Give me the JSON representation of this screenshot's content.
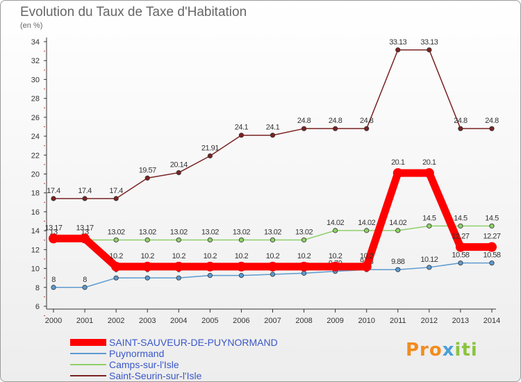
{
  "title": "Evolution du Taux de Taxe d'Habitation",
  "subtitle": "(en %)",
  "logo_text": "Proxiti",
  "chart_data": {
    "type": "line",
    "title": "Evolution du Taux de Taxe d'Habitation",
    "ylabel": "(en %)",
    "xlabel": "",
    "x": [
      "2000",
      "2001",
      "2002",
      "2003",
      "2004",
      "2005",
      "2006",
      "2007",
      "2008",
      "2009",
      "2010",
      "2011",
      "2012",
      "2013",
      "2014"
    ],
    "ylim": [
      6,
      34
    ],
    "yticks": [
      6,
      8,
      10,
      12,
      14,
      16,
      18,
      20,
      22,
      24,
      26,
      28,
      30,
      32,
      34
    ],
    "grid": false,
    "legend_position": "bottom-left",
    "series": [
      {
        "name": "Saint-Seurin-sur-l'Isle",
        "color": "#7a2222",
        "values": [
          17.4,
          17.4,
          17.4,
          19.57,
          20.14,
          21.91,
          24.1,
          24.1,
          24.8,
          24.8,
          24.8,
          33.13,
          33.13,
          24.8,
          24.8
        ],
        "labels": [
          "17.4",
          "17.4",
          "17.4",
          "19.57",
          "20.14",
          "21.91",
          "24.1",
          "24.1",
          "24.8",
          "24.8",
          "24.8",
          "33.13",
          "33.13",
          "24.8",
          "24.8"
        ]
      },
      {
        "name": "Camps-sur-l'Isle",
        "color": "#8fd06a",
        "values": [
          13.02,
          13.02,
          13.02,
          13.02,
          13.02,
          13.02,
          13.02,
          13.02,
          13.02,
          14.02,
          14.02,
          14.02,
          14.5,
          14.5,
          14.5
        ],
        "labels": [
          "13",
          "13",
          "13.02",
          "13.02",
          "13.02",
          "13.02",
          "13.02",
          "13.02",
          "13.02",
          "14.02",
          "14.02",
          "14.02",
          "14.5",
          "14.5",
          "14.5"
        ]
      },
      {
        "name": "Puynormand",
        "color": "#5d9ad0",
        "values": [
          8,
          8,
          9,
          9,
          9,
          9.26,
          9.26,
          9.38,
          9.5,
          9.7,
          9.88,
          9.88,
          10.12,
          10.58,
          10.58
        ],
        "labels": [
          "8",
          "8",
          "9",
          "9",
          "9",
          "9.26",
          "9.26",
          "9.38",
          "9.5",
          "9.70",
          "9.88",
          "9.88",
          "10.12",
          "10.58",
          "10.58"
        ]
      },
      {
        "name": "SAINT-SAUVEUR-DE-PUYNORMAND",
        "color": "#ff0000",
        "values": [
          13.17,
          13.17,
          10.2,
          10.2,
          10.2,
          10.2,
          10.2,
          10.2,
          10.2,
          10.2,
          10.2,
          20.1,
          20.1,
          12.27,
          12.27
        ],
        "labels": [
          "13.17",
          "13.17",
          "10.2",
          "10.2",
          "10.2",
          "10.2",
          "10.2",
          "10.2",
          "10.2",
          "10.2",
          "10.2",
          "20.1",
          "20.1",
          "12.27",
          "12.27"
        ]
      }
    ]
  },
  "legend": [
    {
      "label": "SAINT-SAUVEUR-DE-PUYNORMAND",
      "color": "#ff0000"
    },
    {
      "label": "Puynormand",
      "color": "#5d9ad0"
    },
    {
      "label": "Camps-sur-l'Isle",
      "color": "#8fd06a"
    },
    {
      "label": "Saint-Seurin-sur-l'Isle",
      "color": "#7a2222"
    }
  ]
}
